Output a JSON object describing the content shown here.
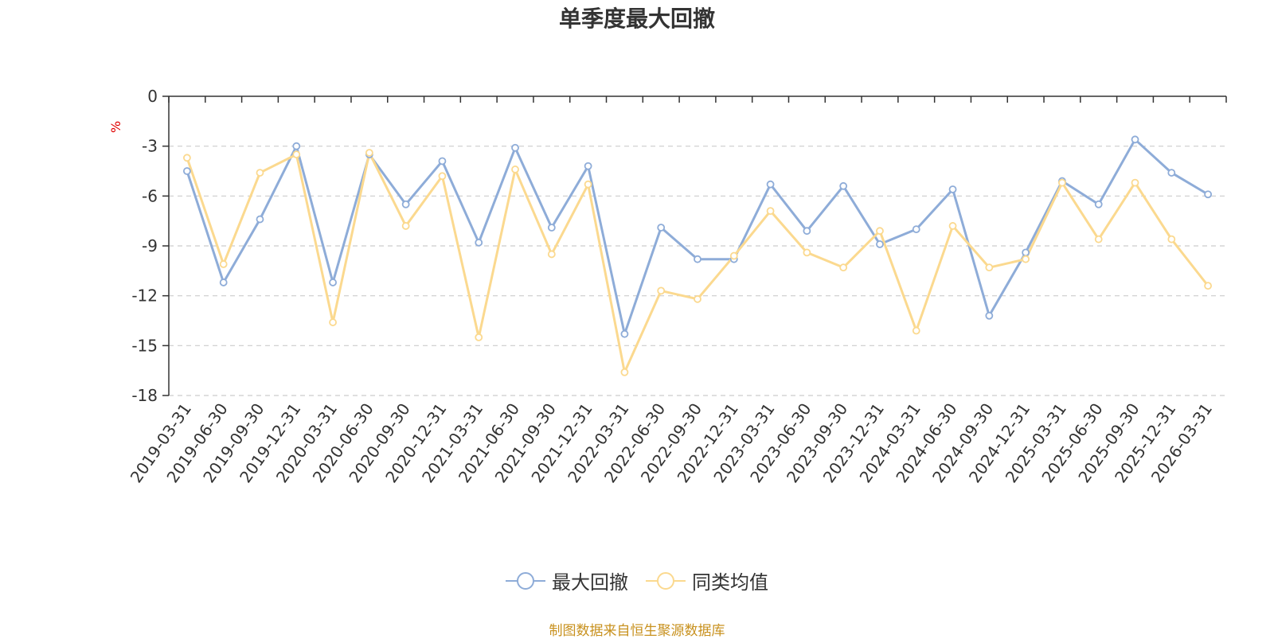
{
  "chart_data": {
    "type": "line",
    "title": "单季度最大回撤",
    "ylabel": "%",
    "ylim": [
      -18,
      0
    ],
    "yticks": [
      0,
      -3,
      -6,
      -9,
      -12,
      -15,
      -18
    ],
    "grid": true,
    "legend_position": "bottom",
    "categories": [
      "2019-03-31",
      "2019-06-30",
      "2019-09-30",
      "2019-12-31",
      "2020-03-31",
      "2020-06-30",
      "2020-09-30",
      "2020-12-31",
      "2021-03-31",
      "2021-06-30",
      "2021-09-30",
      "2021-12-31",
      "2022-03-31",
      "2022-06-30",
      "2022-09-30",
      "2022-12-31",
      "2023-03-31",
      "2023-06-30",
      "2023-09-30",
      "2023-12-31",
      "2024-03-31",
      "2024-06-30",
      "2024-09-30",
      "2024-12-31",
      "2025-03-31",
      "2025-06-30",
      "2025-09-30",
      "2025-12-31",
      "2026-03-31"
    ],
    "series": [
      {
        "name": "最大回撤",
        "color": "#8eacd8",
        "values": [
          -4.5,
          -11.2,
          -7.4,
          -3.0,
          -11.2,
          -3.5,
          -6.5,
          -3.9,
          -8.8,
          -3.1,
          -7.9,
          -4.2,
          -14.3,
          -7.9,
          -9.8,
          -9.8,
          -5.3,
          -8.1,
          -5.4,
          -8.9,
          -8.0,
          -5.6,
          -13.2,
          -9.4,
          -5.1,
          -6.5,
          -2.6,
          -4.6,
          -5.9
        ]
      },
      {
        "name": "同类均值",
        "color": "#fbd98f",
        "values": [
          -3.7,
          -10.1,
          -4.6,
          -3.5,
          -13.6,
          -3.4,
          -7.8,
          -4.8,
          -14.5,
          -4.4,
          -9.5,
          -5.3,
          -16.6,
          -11.7,
          -12.2,
          -9.6,
          -6.9,
          -9.4,
          -10.3,
          -8.1,
          -14.1,
          -7.8,
          -10.3,
          -9.8,
          -5.2,
          -8.6,
          -5.2,
          -8.6,
          -11.4
        ]
      }
    ]
  },
  "source_note": "制图数据来自恒生聚源数据库"
}
